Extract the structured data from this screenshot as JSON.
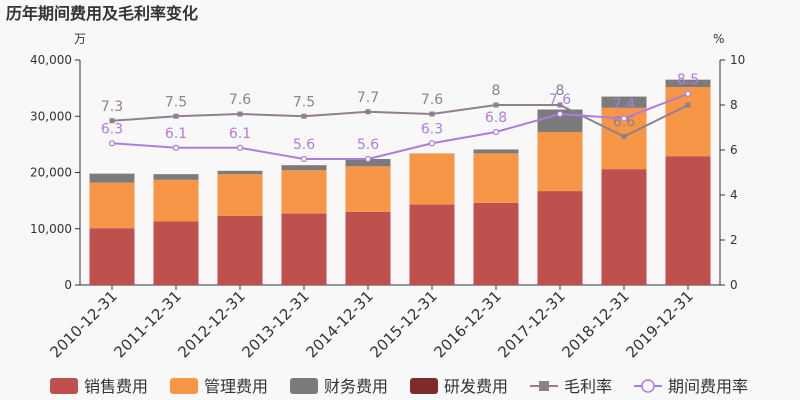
{
  "chart_data": {
    "type": "bar",
    "title": "历年期间费用及毛利率变化",
    "y_left_unit": "万",
    "y_right_unit": "%",
    "categories": [
      "2010-12-31",
      "2011-12-31",
      "2012-12-31",
      "2013-12-31",
      "2014-12-31",
      "2015-12-31",
      "2016-12-31",
      "2017-12-31",
      "2018-12-31",
      "2019-12-31"
    ],
    "y_left": {
      "min": 0,
      "max": 40000,
      "ticks": [
        0,
        10000,
        20000,
        30000,
        40000
      ],
      "tick_labels": [
        "0",
        "10,000",
        "20,000",
        "30,000",
        "40,000"
      ]
    },
    "y_right": {
      "min": 0,
      "max": 10,
      "ticks": [
        0,
        2,
        4,
        6,
        8,
        10
      ],
      "tick_labels": [
        "0",
        "2",
        "4",
        "6",
        "8",
        "10"
      ]
    },
    "bar_series": [
      {
        "name": "销售费用",
        "color": "#c0504d",
        "values": [
          10100,
          11300,
          12300,
          12700,
          13000,
          14300,
          14600,
          16700,
          20600,
          22900
        ]
      },
      {
        "name": "管理费用",
        "color": "#f79646",
        "values": [
          8100,
          7400,
          7400,
          7700,
          8100,
          9100,
          8800,
          10500,
          10900,
          12300
        ]
      },
      {
        "name": "财务费用",
        "color": "#7b7b7b",
        "values": [
          1600,
          1000,
          600,
          900,
          1300,
          0,
          700,
          4000,
          2000,
          1300
        ]
      },
      {
        "name": "研发费用",
        "color": "#7d2b2b",
        "values": [
          0,
          0,
          0,
          0,
          0,
          0,
          0,
          0,
          0,
          0
        ]
      }
    ],
    "line_series": [
      {
        "name": "毛利率",
        "color": "#8f7f8f",
        "marker": "square",
        "values": [
          7.3,
          7.5,
          7.6,
          7.5,
          7.7,
          7.6,
          8,
          8,
          6.6,
          8
        ],
        "labels": [
          "7.3",
          "7.5",
          "7.6",
          "7.5",
          "7.7",
          "7.6",
          "8",
          "8",
          "6.6",
          ""
        ]
      },
      {
        "name": "期间费用率",
        "color": "#b07be0",
        "marker": "circle",
        "values": [
          6.3,
          6.1,
          6.1,
          5.6,
          5.6,
          6.3,
          6.8,
          7.6,
          7.4,
          8.5
        ],
        "labels": [
          "6.3",
          "6.1",
          "6.1",
          "5.6",
          "5.6",
          "6.3",
          "6.8",
          "7.6",
          "7.4",
          "8.5"
        ]
      }
    ],
    "legend_position": "bottom"
  }
}
